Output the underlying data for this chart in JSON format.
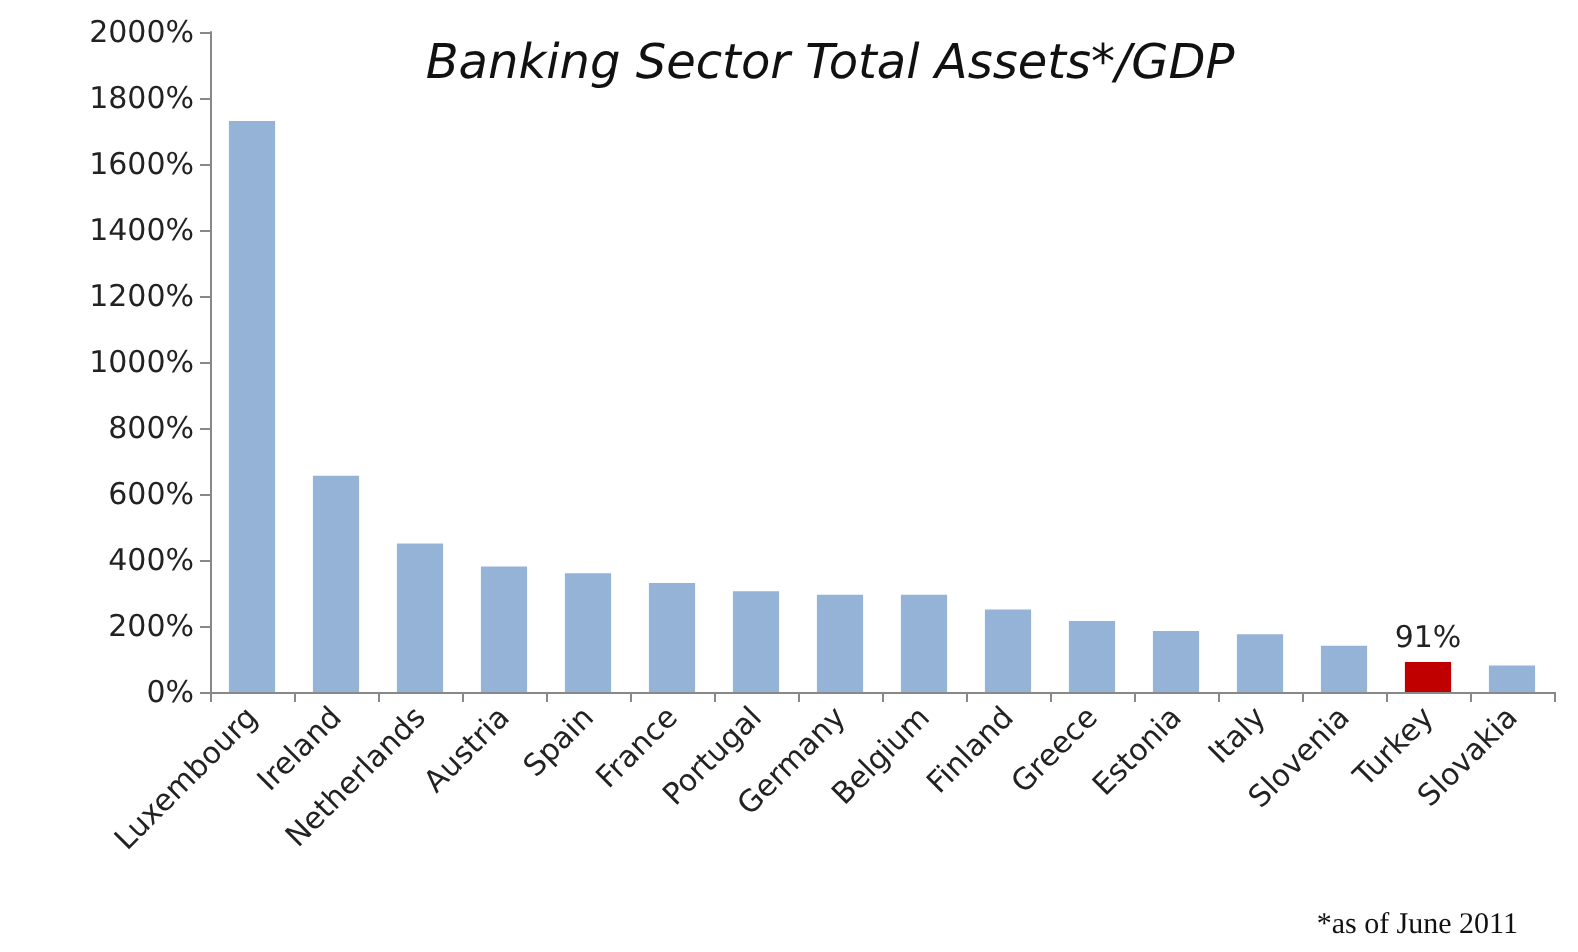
{
  "chart_data": {
    "type": "bar",
    "title": "Banking Sector Total Assets*/GDP",
    "categories": [
      "Luxembourg",
      "Ireland",
      "Netherlands",
      "Austria",
      "Spain",
      "France",
      "Portugal",
      "Germany",
      "Belgium",
      "Finland",
      "Greece",
      "Estonia",
      "Italy",
      "Slovenia",
      "Turkey",
      "Slovakia"
    ],
    "values": [
      1730,
      655,
      450,
      380,
      360,
      330,
      305,
      295,
      295,
      250,
      215,
      185,
      175,
      140,
      91,
      80
    ],
    "colors": [
      "#95b3d7",
      "#95b3d7",
      "#95b3d7",
      "#95b3d7",
      "#95b3d7",
      "#95b3d7",
      "#95b3d7",
      "#95b3d7",
      "#95b3d7",
      "#95b3d7",
      "#95b3d7",
      "#95b3d7",
      "#95b3d7",
      "#95b3d7",
      "#c00000",
      "#95b3d7"
    ],
    "value_labels": [
      null,
      null,
      null,
      null,
      null,
      null,
      null,
      null,
      null,
      null,
      null,
      null,
      null,
      null,
      "91%",
      null
    ],
    "ylim": [
      0,
      2000
    ],
    "yticks": [
      {
        "value": 0,
        "label": "0%"
      },
      {
        "value": 200,
        "label": "200%"
      },
      {
        "value": 400,
        "label": "400%"
      },
      {
        "value": 600,
        "label": "600%"
      },
      {
        "value": 800,
        "label": "800%"
      },
      {
        "value": 1000,
        "label": "1000%"
      },
      {
        "value": 1200,
        "label": "1200%"
      },
      {
        "value": 1400,
        "label": "1400%"
      },
      {
        "value": 1600,
        "label": "1600%"
      },
      {
        "value": 1800,
        "label": "1800%"
      },
      {
        "value": 2000,
        "label": "2000%"
      }
    ],
    "grid": false,
    "annotations": [
      "*as of June 2011"
    ]
  }
}
